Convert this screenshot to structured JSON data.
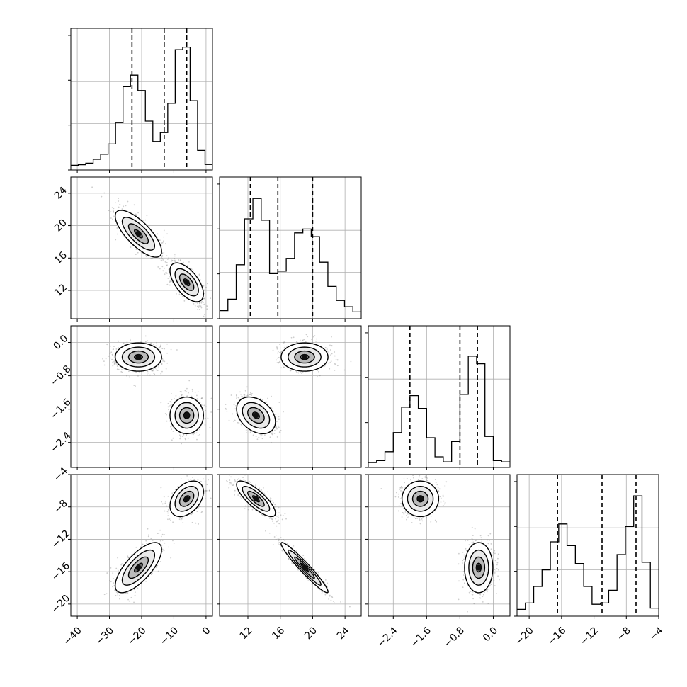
{
  "figure": {
    "type": "corner-plot",
    "colors": {
      "line": "#000000",
      "grid": "#b0b0b0",
      "scatter": "#707070"
    }
  },
  "chart_data": {
    "type": "corner",
    "grid": true,
    "parameters": [
      {
        "range": [
          -42,
          2
        ],
        "ticks": [
          -40,
          -30,
          -20,
          -10,
          0
        ],
        "tick_labels": [
          "−40",
          "−30",
          "−20",
          "−10",
          "0"
        ],
        "quantiles": [
          -23.0,
          -13.0,
          -6.0
        ],
        "hist": [
          0.003,
          0.008,
          0.02,
          0.05,
          0.09,
          0.17,
          0.34,
          0.62,
          0.71,
          0.59,
          0.35,
          0.19,
          0.26,
          0.49,
          0.91,
          0.93,
          0.51,
          0.12,
          0.01
        ]
      },
      {
        "range": [
          8.5,
          26
        ],
        "ticks": [
          12,
          16,
          20,
          24
        ],
        "tick_labels": [
          "12",
          "16",
          "20",
          "24"
        ],
        "quantiles": [
          12.3,
          15.7,
          20.0
        ],
        "hist": [
          0.03,
          0.12,
          0.39,
          0.75,
          0.91,
          0.74,
          0.32,
          0.34,
          0.44,
          0.64,
          0.67,
          0.61,
          0.41,
          0.22,
          0.11,
          0.06,
          0.02
        ]
      },
      {
        "range": [
          -3.0,
          0.4
        ],
        "ticks": [
          -2.4,
          -1.6,
          -0.8,
          0.0
        ],
        "tick_labels": [
          "−2.4",
          "−1.6",
          "−0.8",
          "0.0"
        ],
        "quantiles": [
          -2.0,
          -0.8,
          -0.38
        ],
        "hist": [
          0.005,
          0.02,
          0.09,
          0.24,
          0.44,
          0.53,
          0.43,
          0.2,
          0.05,
          0.01,
          0.17,
          0.54,
          0.84,
          0.78,
          0.21,
          0.02,
          0.01
        ]
      },
      {
        "range": [
          -21.5,
          -4
        ],
        "ticks": [
          -20,
          -16,
          -12,
          -8,
          -4
        ],
        "tick_labels": [
          "−20",
          "−16",
          "−12",
          "−8",
          "−4"
        ],
        "quantiles": [
          -16.5,
          -11.0,
          -6.8
        ],
        "hist": [
          0.02,
          0.07,
          0.2,
          0.33,
          0.55,
          0.69,
          0.52,
          0.38,
          0.2,
          0.06,
          0.07,
          0.17,
          0.45,
          0.67,
          0.91,
          0.39,
          0.03
        ]
      }
    ],
    "clusters": [
      {
        "mean": [
          -21,
          19,
          -0.35,
          -15.5
        ]
      },
      {
        "mean": [
          -6,
          13,
          -1.75,
          -7.0
        ]
      }
    ]
  }
}
